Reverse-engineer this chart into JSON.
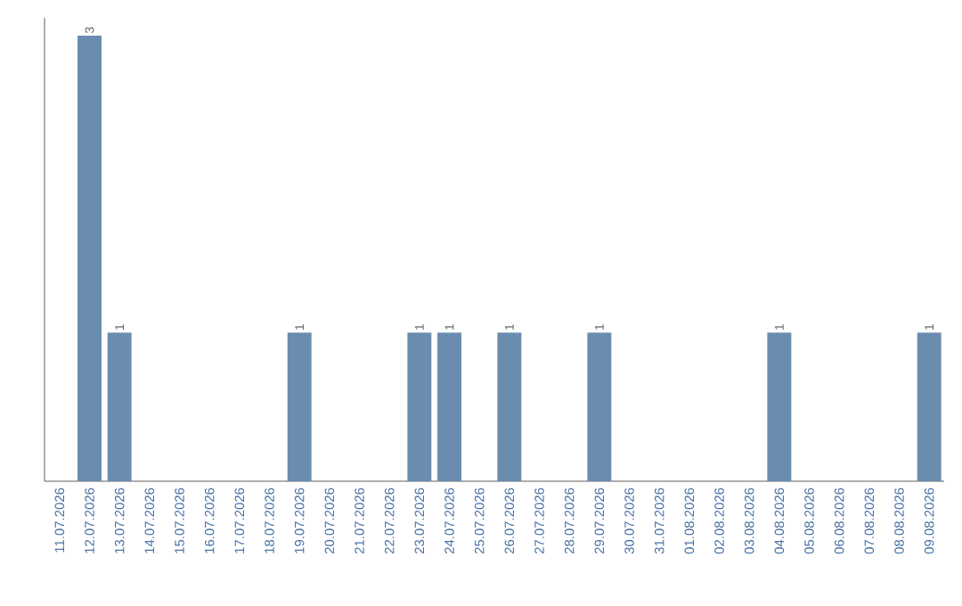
{
  "chart_data": {
    "type": "bar",
    "categories": [
      "11.07.2026",
      "12.07.2026",
      "13.07.2026",
      "14.07.2026",
      "15.07.2026",
      "16.07.2026",
      "17.07.2026",
      "18.07.2026",
      "19.07.2026",
      "20.07.2026",
      "21.07.2026",
      "22.07.2026",
      "23.07.2026",
      "24.07.2026",
      "25.07.2026",
      "26.07.2026",
      "27.07.2026",
      "28.07.2026",
      "29.07.2026",
      "30.07.2026",
      "31.07.2026",
      "01.08.2026",
      "02.08.2026",
      "03.08.2026",
      "04.08.2026",
      "05.08.2026",
      "06.08.2026",
      "07.08.2026",
      "08.08.2026",
      "09.08.2026"
    ],
    "values": [
      0,
      3,
      1,
      0,
      0,
      0,
      0,
      0,
      1,
      0,
      0,
      0,
      1,
      1,
      0,
      1,
      0,
      0,
      1,
      0,
      0,
      0,
      0,
      0,
      1,
      0,
      0,
      0,
      0,
      1
    ],
    "value_labels": [
      null,
      "3",
      "1",
      null,
      null,
      null,
      null,
      null,
      "1",
      null,
      null,
      null,
      "1",
      "1",
      null,
      "1",
      null,
      null,
      "1",
      null,
      null,
      null,
      null,
      null,
      "1",
      null,
      null,
      null,
      null,
      "1"
    ],
    "color": "#6a8caf"
  }
}
